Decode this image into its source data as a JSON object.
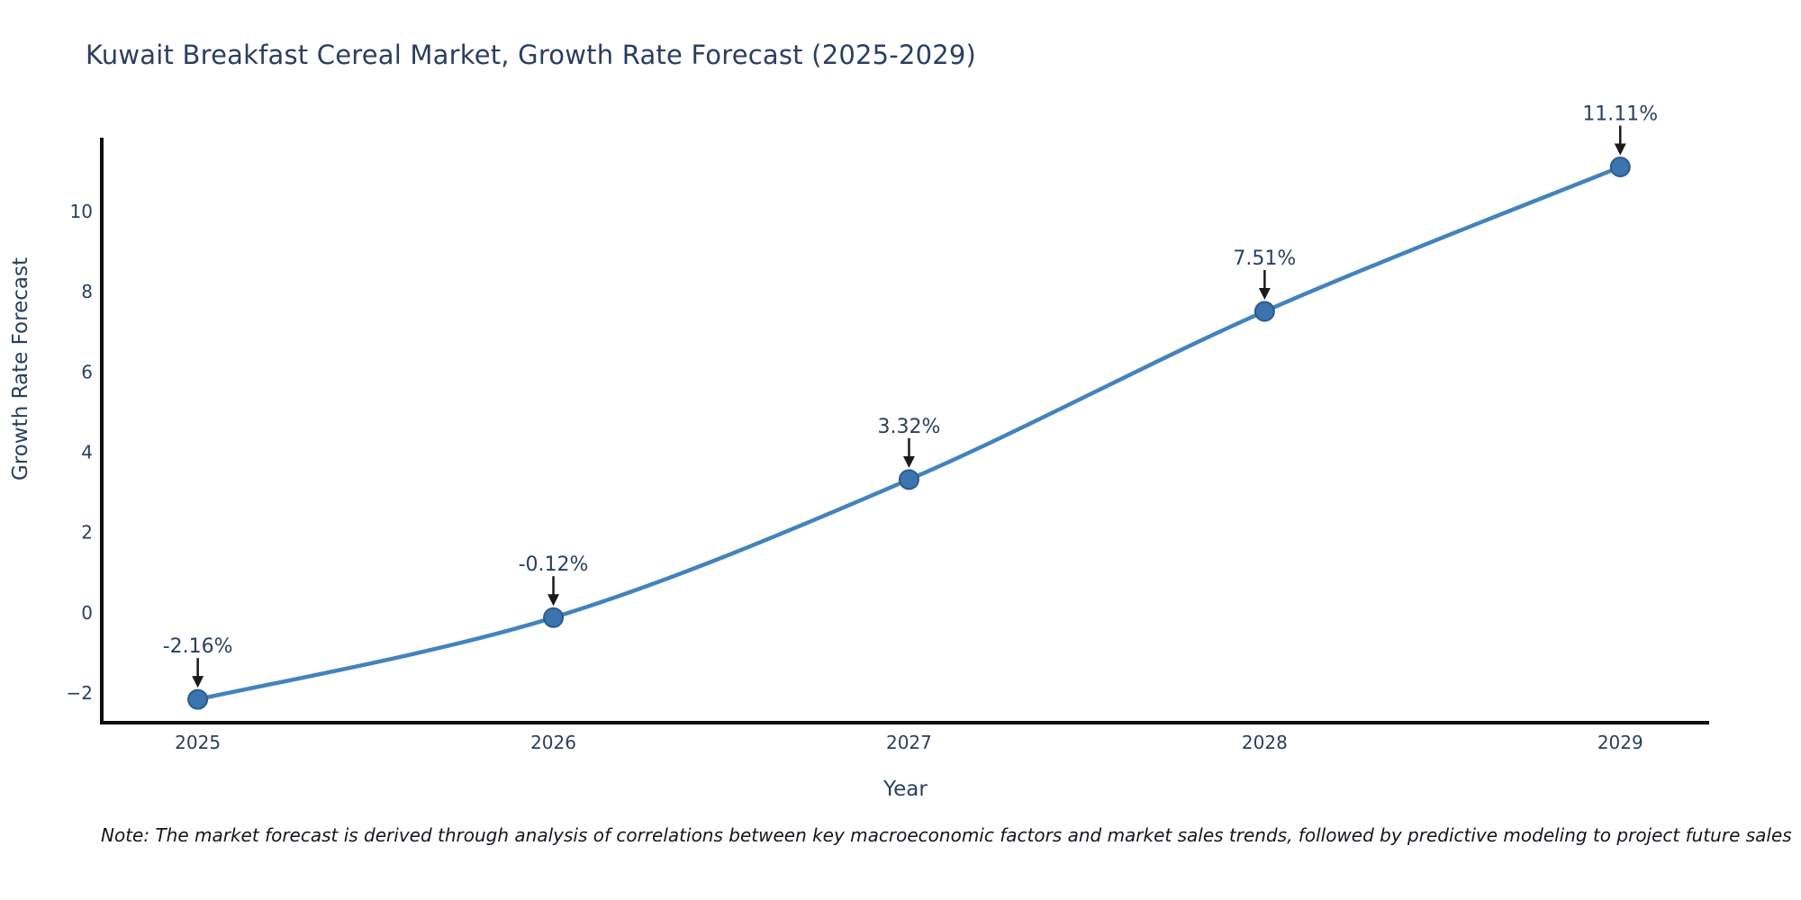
{
  "chart_data": {
    "type": "line",
    "title": "Kuwait Breakfast Cereal Market, Growth Rate Forecast (2025-2029)",
    "xlabel": "Year",
    "ylabel": "Growth Rate Forecast",
    "x": [
      2025,
      2026,
      2027,
      2028,
      2029
    ],
    "series": [
      {
        "name": "Growth Rate Forecast",
        "values": [
          -2.16,
          -0.12,
          3.32,
          7.51,
          11.11
        ]
      }
    ],
    "point_labels": [
      "-2.16%",
      "-0.12%",
      "3.32%",
      "7.51%",
      "11.11%"
    ],
    "xtick_labels": [
      "2025",
      "2026",
      "2027",
      "2028",
      "2029"
    ],
    "yticks": [
      -2,
      0,
      2,
      4,
      6,
      8,
      10
    ],
    "ytick_labels": [
      "−2",
      "0",
      "2",
      "4",
      "6",
      "8",
      "10"
    ],
    "xlim": [
      2024.73,
      2029.25
    ],
    "ylim": [
      -2.74,
      11.84
    ],
    "grid": false,
    "legend_position": "none",
    "line_shape": "spline",
    "colors": {
      "line": "#4383bd",
      "marker_fill": "#3b74ae",
      "marker_edge": "#2b5c8e",
      "axis_line": "#0d0d0d",
      "text": "#2a3f5f",
      "annotation_arrow": "#1a1a1a",
      "background": "#ffffff"
    }
  },
  "note": "Note: The market forecast is derived through analysis of correlations between key macroeconomic factors and market sales trends, followed by predictive modeling to project future sales"
}
